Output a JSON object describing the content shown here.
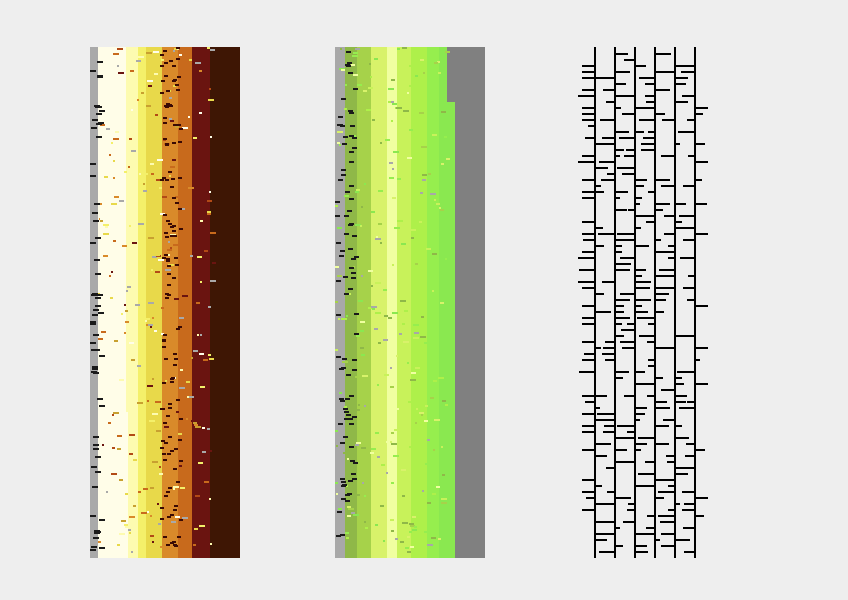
{
  "figure": {
    "background": "#eeeeee",
    "panels": [
      {
        "id": "heat-stripes",
        "palette": [
          "#a9a9a9",
          "#fffde8",
          "#fdfbb0",
          "#f4f06a",
          "#e8d94a",
          "#c8a030",
          "#d98a2a",
          "#c86a1c",
          "#b24a16",
          "#6a1410",
          "#561008",
          "#3e1604"
        ]
      },
      {
        "id": "green-stripes",
        "palette": [
          "#a8a8a8",
          "#8fb848",
          "#a6d24a",
          "#d8f26a",
          "#f0ffa0",
          "#c8f25a",
          "#aef04a",
          "#96ee4e",
          "#8ae850",
          "#808080"
        ]
      },
      {
        "id": "black-line-grid",
        "palette": [
          "#000000"
        ]
      }
    ]
  }
}
